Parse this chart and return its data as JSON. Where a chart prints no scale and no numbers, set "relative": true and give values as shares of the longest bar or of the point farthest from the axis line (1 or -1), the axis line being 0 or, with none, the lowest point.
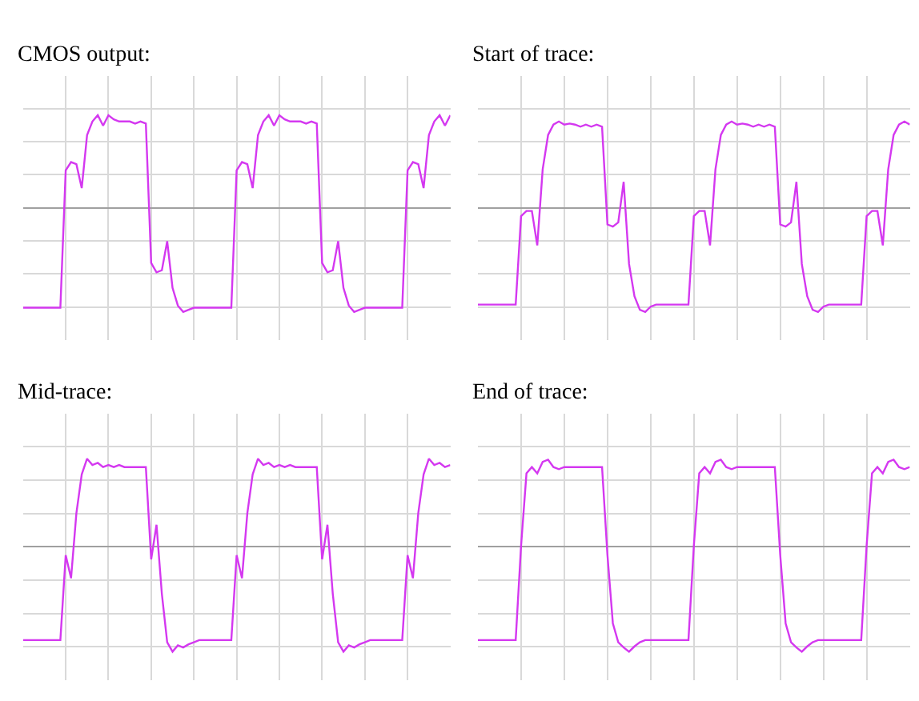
{
  "chart_data": [
    {
      "type": "line",
      "title": "CMOS output:",
      "relative": true,
      "grid": true,
      "categories": [
        null,
        null,
        null,
        null,
        null,
        null,
        null,
        null,
        null,
        null,
        null,
        null,
        null,
        null,
        null,
        null,
        null,
        null,
        null,
        null,
        null,
        null,
        null,
        null,
        null,
        null,
        null,
        null,
        null,
        null,
        null,
        null,
        null,
        null,
        null,
        null,
        null,
        null,
        null,
        null,
        null,
        null,
        null,
        null,
        null,
        null,
        null,
        null,
        null,
        null,
        null,
        null,
        null,
        null,
        null,
        null,
        null,
        null,
        null,
        null,
        null,
        null,
        null,
        null,
        null,
        null,
        null,
        null,
        null,
        null,
        null,
        null,
        null,
        null,
        null,
        null,
        null,
        null,
        null,
        null,
        null
      ],
      "series": [
        {
          "color": "#d438f0",
          "values": [
            -0.96,
            -0.96,
            -0.96,
            -0.96,
            -0.96,
            -0.96,
            -0.96,
            -0.96,
            0.36,
            0.44,
            0.42,
            0.19,
            0.7,
            0.83,
            0.89,
            0.79,
            0.89,
            0.85,
            0.83,
            0.83,
            0.83,
            0.81,
            0.83,
            0.81,
            -0.53,
            -0.62,
            -0.6,
            -0.32,
            -0.77,
            -0.94,
            -1,
            -0.98,
            -0.96,
            -0.96,
            -0.96,
            -0.96,
            -0.96,
            -0.96,
            -0.96,
            -0.96,
            0.36,
            0.44,
            0.42,
            0.19,
            0.7,
            0.83,
            0.89,
            0.79,
            0.89,
            0.85,
            0.83,
            0.83,
            0.83,
            0.81,
            0.83,
            0.81,
            -0.53,
            -0.62,
            -0.6,
            -0.32,
            -0.77,
            -0.94,
            -1,
            -0.98,
            -0.96,
            -0.96,
            -0.96,
            -0.96,
            -0.96,
            -0.96,
            -0.96,
            -0.96,
            0.36,
            0.44,
            0.42,
            0.19,
            0.7,
            0.83,
            0.89,
            0.79,
            0.89
          ]
        }
      ]
    },
    {
      "type": "line",
      "title": "Start of trace:",
      "relative": true,
      "grid": true,
      "categories": [
        null,
        null,
        null,
        null,
        null,
        null,
        null,
        null,
        null,
        null,
        null,
        null,
        null,
        null,
        null,
        null,
        null,
        null,
        null,
        null,
        null,
        null,
        null,
        null,
        null,
        null,
        null,
        null,
        null,
        null,
        null,
        null,
        null,
        null,
        null,
        null,
        null,
        null,
        null,
        null,
        null,
        null,
        null,
        null,
        null,
        null,
        null,
        null,
        null,
        null,
        null,
        null,
        null,
        null,
        null,
        null,
        null,
        null,
        null,
        null,
        null,
        null,
        null,
        null,
        null,
        null,
        null,
        null,
        null,
        null,
        null,
        null,
        null,
        null,
        null,
        null,
        null,
        null,
        null,
        null,
        null
      ],
      "series": [
        {
          "color": "#d438f0",
          "values": [
            -0.93,
            -0.93,
            -0.93,
            -0.93,
            -0.93,
            -0.93,
            -0.93,
            -0.93,
            -0.08,
            -0.03,
            -0.03,
            -0.36,
            0.37,
            0.7,
            0.8,
            0.83,
            0.8,
            0.81,
            0.8,
            0.78,
            0.8,
            0.78,
            0.8,
            0.78,
            -0.16,
            -0.18,
            -0.14,
            0.25,
            -0.54,
            -0.85,
            -0.98,
            -1,
            -0.95,
            -0.93,
            -0.93,
            -0.93,
            -0.93,
            -0.93,
            -0.93,
            -0.93,
            -0.08,
            -0.03,
            -0.03,
            -0.36,
            0.37,
            0.7,
            0.8,
            0.83,
            0.8,
            0.81,
            0.8,
            0.78,
            0.8,
            0.78,
            0.8,
            0.78,
            -0.16,
            -0.18,
            -0.14,
            0.25,
            -0.54,
            -0.85,
            -0.98,
            -1,
            -0.95,
            -0.93,
            -0.93,
            -0.93,
            -0.93,
            -0.93,
            -0.93,
            -0.93,
            -0.08,
            -0.03,
            -0.03,
            -0.36,
            0.37,
            0.7,
            0.8,
            0.83,
            0.8
          ]
        }
      ]
    },
    {
      "type": "line",
      "title": "Mid-trace:",
      "relative": true,
      "grid": true,
      "categories": [
        null,
        null,
        null,
        null,
        null,
        null,
        null,
        null,
        null,
        null,
        null,
        null,
        null,
        null,
        null,
        null,
        null,
        null,
        null,
        null,
        null,
        null,
        null,
        null,
        null,
        null,
        null,
        null,
        null,
        null,
        null,
        null,
        null,
        null,
        null,
        null,
        null,
        null,
        null,
        null,
        null,
        null,
        null,
        null,
        null,
        null,
        null,
        null,
        null,
        null,
        null,
        null,
        null,
        null,
        null,
        null,
        null,
        null,
        null,
        null,
        null,
        null,
        null,
        null,
        null,
        null,
        null,
        null,
        null,
        null,
        null,
        null,
        null,
        null,
        null,
        null,
        null,
        null,
        null,
        null,
        null
      ],
      "series": [
        {
          "color": "#d438f0",
          "values": [
            -0.89,
            -0.89,
            -0.89,
            -0.89,
            -0.89,
            -0.89,
            -0.89,
            -0.89,
            -0.08,
            -0.3,
            0.32,
            0.69,
            0.84,
            0.78,
            0.8,
            0.76,
            0.78,
            0.76,
            0.78,
            0.76,
            0.76,
            0.76,
            0.76,
            0.76,
            -0.12,
            0.21,
            -0.45,
            -0.91,
            -1,
            -0.94,
            -0.96,
            -0.93,
            -0.91,
            -0.89,
            -0.89,
            -0.89,
            -0.89,
            -0.89,
            -0.89,
            -0.89,
            -0.08,
            -0.3,
            0.32,
            0.69,
            0.84,
            0.78,
            0.8,
            0.76,
            0.78,
            0.76,
            0.78,
            0.76,
            0.76,
            0.76,
            0.76,
            0.76,
            -0.12,
            0.21,
            -0.45,
            -0.91,
            -1,
            -0.94,
            -0.96,
            -0.93,
            -0.91,
            -0.89,
            -0.89,
            -0.89,
            -0.89,
            -0.89,
            -0.89,
            -0.89,
            -0.08,
            -0.3,
            0.32,
            0.69,
            0.84,
            0.78,
            0.8,
            0.76,
            0.78
          ]
        }
      ]
    },
    {
      "type": "line",
      "title": "End of trace:",
      "relative": true,
      "grid": true,
      "categories": [
        null,
        null,
        null,
        null,
        null,
        null,
        null,
        null,
        null,
        null,
        null,
        null,
        null,
        null,
        null,
        null,
        null,
        null,
        null,
        null,
        null,
        null,
        null,
        null,
        null,
        null,
        null,
        null,
        null,
        null,
        null,
        null,
        null,
        null,
        null,
        null,
        null,
        null,
        null,
        null,
        null,
        null,
        null,
        null,
        null,
        null,
        null,
        null,
        null,
        null,
        null,
        null,
        null,
        null,
        null,
        null,
        null,
        null,
        null,
        null,
        null,
        null,
        null,
        null,
        null,
        null,
        null,
        null,
        null,
        null,
        null,
        null,
        null,
        null,
        null,
        null,
        null,
        null,
        null,
        null,
        null
      ],
      "series": [
        {
          "color": "#d438f0",
          "values": [
            -0.89,
            -0.89,
            -0.89,
            -0.89,
            -0.89,
            -0.89,
            -0.89,
            -0.89,
            0.01,
            0.7,
            0.76,
            0.7,
            0.81,
            0.83,
            0.76,
            0.74,
            0.76,
            0.76,
            0.76,
            0.76,
            0.76,
            0.76,
            0.76,
            0.76,
            -0.08,
            -0.73,
            -0.91,
            -0.96,
            -1,
            -0.95,
            -0.91,
            -0.89,
            -0.89,
            -0.89,
            -0.89,
            -0.89,
            -0.89,
            -0.89,
            -0.89,
            -0.89,
            0.01,
            0.7,
            0.76,
            0.7,
            0.81,
            0.83,
            0.76,
            0.74,
            0.76,
            0.76,
            0.76,
            0.76,
            0.76,
            0.76,
            0.76,
            0.76,
            -0.08,
            -0.73,
            -0.91,
            -0.96,
            -1,
            -0.95,
            -0.91,
            -0.89,
            -0.89,
            -0.89,
            -0.89,
            -0.89,
            -0.89,
            -0.89,
            -0.89,
            -0.89,
            0.01,
            0.7,
            0.76,
            0.7,
            0.81,
            0.83,
            0.76,
            0.74,
            0.76
          ]
        }
      ]
    }
  ]
}
